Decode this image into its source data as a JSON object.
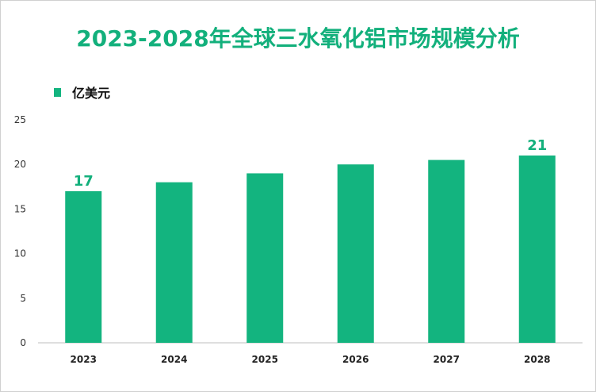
{
  "chart_data": {
    "type": "bar",
    "title": "2023-2028年全球三水氧化铝市场规模分析",
    "legend": [
      "亿美元"
    ],
    "legend_position": "top-left",
    "categories": [
      "2023",
      "2024",
      "2025",
      "2026",
      "2027",
      "2028"
    ],
    "series": [
      {
        "name": "亿美元",
        "values": [
          17,
          18,
          19,
          20,
          20.5,
          21
        ]
      }
    ],
    "data_labels": [
      {
        "category": "2023",
        "text": "17"
      },
      {
        "category": "2028",
        "text": "21"
      }
    ],
    "yticks": [
      "0",
      "5",
      "10",
      "15",
      "20",
      "25"
    ],
    "ylim": [
      0,
      25
    ],
    "xlabel": "",
    "ylabel": "",
    "grid": false,
    "colors": {
      "bar": "#13b47f",
      "title": "#13b07c",
      "label": "#13b07c"
    }
  }
}
